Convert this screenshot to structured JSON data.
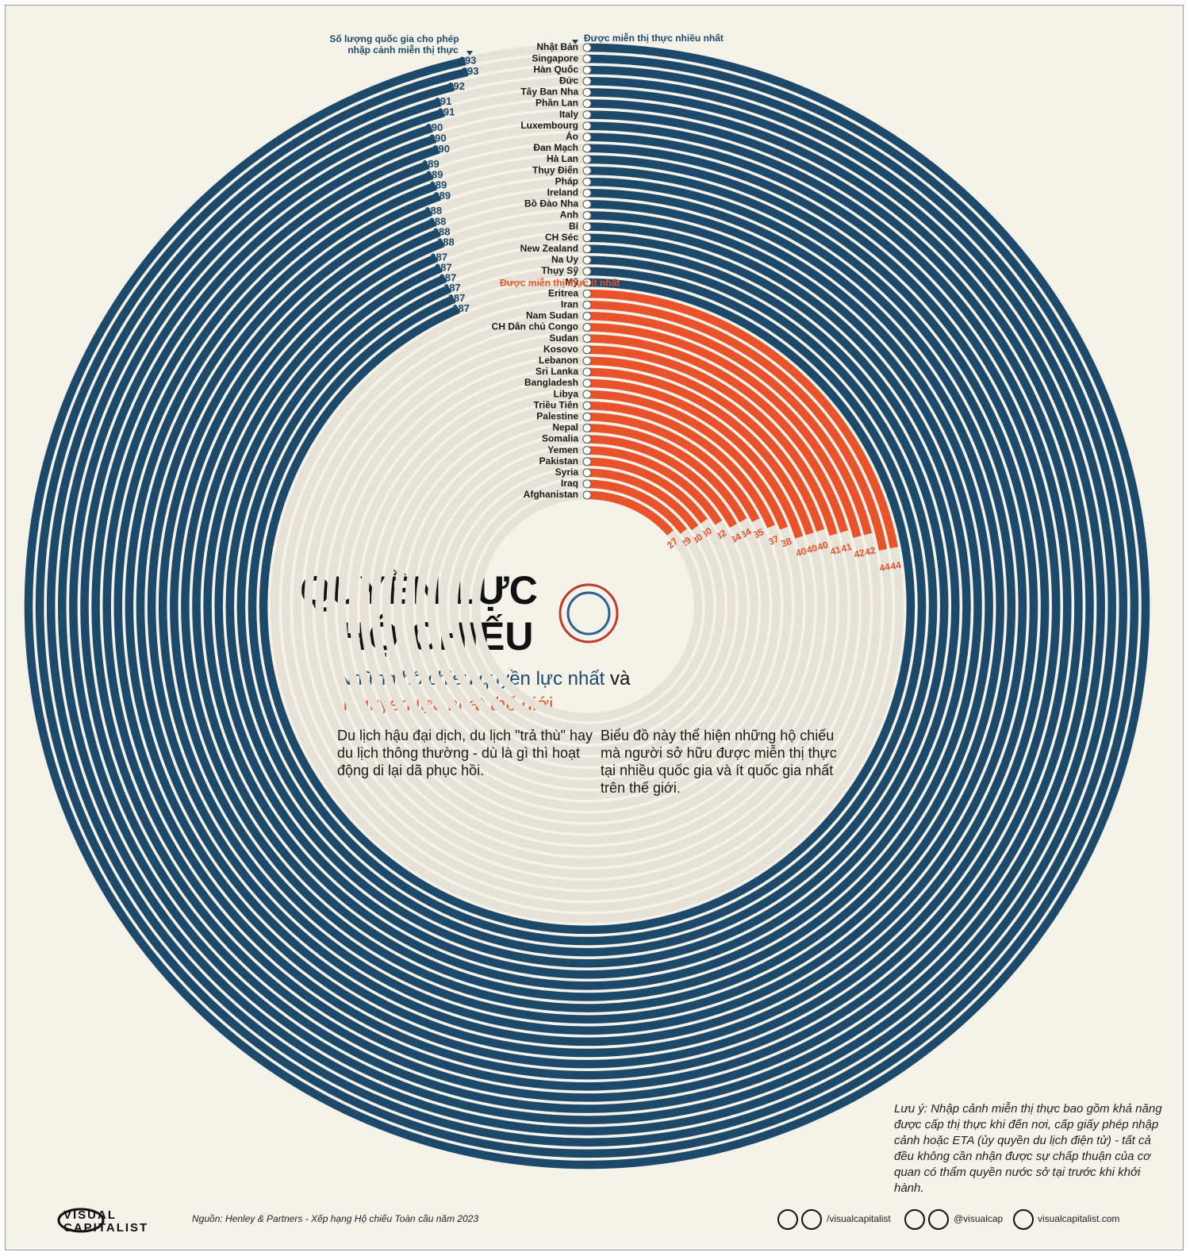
{
  "chart_data": {
    "type": "radial_bar",
    "title_lines": [
      "QUYỀN LỰC",
      "HỘ CHIẾU"
    ],
    "subtitle_parts": [
      "Những hộ chiếu quyền lực nhất",
      "và",
      "ít quyền lực nhất thế giới"
    ],
    "value_axis_label": [
      "Số lượng quốc gia cho phép",
      "nhập cảnh miễn thị thực"
    ],
    "ylim": [
      0,
      200
    ],
    "series": [
      {
        "name": "Được miễn thị thực nhiều nhất",
        "color": "#1d4a6b",
        "categories": [
          "Nhật Bản",
          "Singapore",
          "Hàn Quốc",
          "Đức",
          "Tây Ban Nha",
          "Phần Lan",
          "Italy",
          "Luxembourg",
          "Áo",
          "Đan Mạch",
          "Hà Lan",
          "Thụy Điển",
          "Pháp",
          "Ireland",
          "Bồ Đào Nha",
          "Anh",
          "Bỉ",
          "CH Séc",
          "New Zealand",
          "Na Uy",
          "Thụy Sỹ",
          "Mỹ"
        ],
        "values": [
          193,
          193,
          192,
          191,
          191,
          190,
          190,
          190,
          189,
          189,
          189,
          189,
          188,
          188,
          188,
          188,
          187,
          187,
          187,
          187,
          187,
          187
        ]
      },
      {
        "name": "Được miễn thị thực ít nhất",
        "color": "#e8532b",
        "categories": [
          "Eritrea",
          "Iran",
          "Nam Sudan",
          "CH Dân chủ Congo",
          "Sudan",
          "Kosovo",
          "Lebanon",
          "Sri Lanka",
          "Bangladesh",
          "Libya",
          "Triều Tiên",
          "Palestine",
          "Nepal",
          "Somalia",
          "Yemen",
          "Pakistan",
          "Syria",
          "Iraq",
          "Afghanistan"
        ],
        "values": [
          44,
          44,
          42,
          42,
          41,
          41,
          40,
          40,
          40,
          38,
          37,
          35,
          34,
          34,
          32,
          30,
          30,
          29,
          27
        ]
      }
    ],
    "paragraphs": [
      "Du lịch hậu đại dịch, du lịch \"trả thù\" hay du lịch thông thường - dù là gì thì hoạt động di lại dã phục hồi.",
      "Biểu đồ này thể hiện những hộ chiếu mà người sở hữu được miễn thị thực tại nhiều quốc gia và ít quốc gia nhất trên thế giới."
    ],
    "note": "Lưu ý: Nhập cảnh miễn thị thực bao gồm khả năng được cấp thị thực khi đến nơi, cấp giấy phép nhập cảnh hoặc ETA (ủy quyền du lịch điện tử) - tất cả đều không cần nhận được sự chấp thuận của cơ quan có thẩm quyền nước sở tại trước khi khởi hành.",
    "source": "Nguồn: Henley & Partners - Xếp hạng Hộ chiếu Toàn cầu năm 2023",
    "logo": [
      "VISUAL",
      "CAPITALIST"
    ],
    "social": [
      "/visualcapitalist",
      "@visualcap",
      "visualcapitalist.com"
    ]
  }
}
